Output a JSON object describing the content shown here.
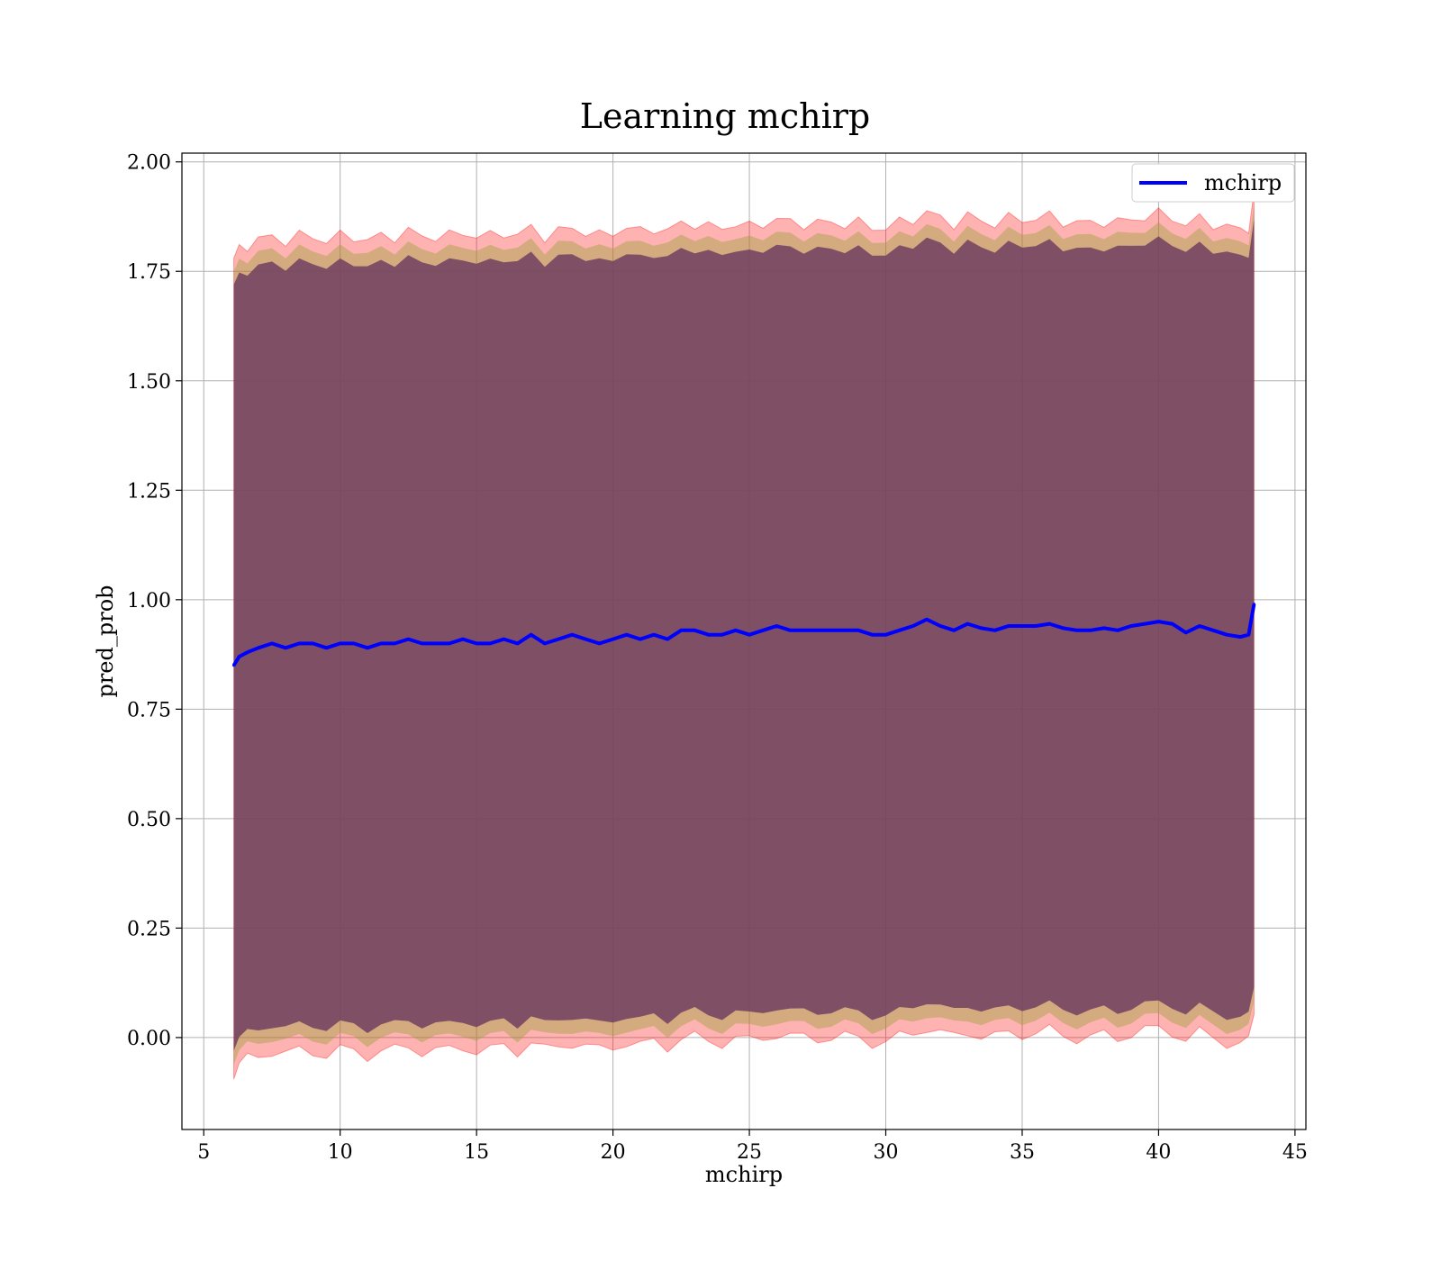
{
  "chart_data": {
    "type": "line",
    "title": "Learning mchirp",
    "xlabel": "mchirp",
    "ylabel": "pred_prob",
    "xlim": [
      4.2,
      45.4
    ],
    "ylim": [
      -0.21,
      2.02
    ],
    "xticks": [
      5,
      10,
      15,
      20,
      25,
      30,
      35,
      40,
      45
    ],
    "xtick_labels": [
      "5",
      "10",
      "15",
      "20",
      "25",
      "30",
      "35",
      "40",
      "45"
    ],
    "yticks": [
      0.0,
      0.25,
      0.5,
      0.75,
      1.0,
      1.25,
      1.5,
      1.75,
      2.0
    ],
    "ytick_labels": [
      "0.00",
      "0.25",
      "0.50",
      "0.75",
      "1.00",
      "1.25",
      "1.50",
      "1.75",
      "2.00"
    ],
    "grid": true,
    "legend_position": "top-right",
    "colors": {
      "line": "#0000ff",
      "band_outer": "#ff0000",
      "band_mid": "#a0a040",
      "band_inner": "#704060",
      "grid": "#b0b0b0"
    },
    "series": [
      {
        "name": "mchirp",
        "x": [
          6.1,
          6.3,
          6.6,
          7.0,
          7.5,
          8.0,
          8.5,
          9.0,
          9.5,
          10.0,
          10.5,
          11.0,
          11.5,
          12.0,
          12.5,
          13.0,
          13.5,
          14.0,
          14.5,
          15.0,
          15.5,
          16.0,
          16.5,
          17.0,
          17.5,
          18.0,
          18.5,
          19.0,
          19.5,
          20.0,
          20.5,
          21.0,
          21.5,
          22.0,
          22.5,
          23.0,
          23.5,
          24.0,
          24.5,
          25.0,
          25.5,
          26.0,
          26.5,
          27.0,
          27.5,
          28.0,
          28.5,
          29.0,
          29.5,
          30.0,
          30.5,
          31.0,
          31.5,
          32.0,
          32.5,
          33.0,
          33.5,
          34.0,
          34.5,
          35.0,
          35.5,
          36.0,
          36.5,
          37.0,
          37.5,
          38.0,
          38.5,
          39.0,
          39.5,
          40.0,
          40.5,
          41.0,
          41.5,
          42.0,
          42.5,
          43.0,
          43.3,
          43.5
        ],
        "y": [
          0.85,
          0.87,
          0.88,
          0.89,
          0.9,
          0.89,
          0.9,
          0.9,
          0.89,
          0.9,
          0.9,
          0.89,
          0.9,
          0.9,
          0.91,
          0.9,
          0.9,
          0.9,
          0.91,
          0.9,
          0.9,
          0.91,
          0.9,
          0.92,
          0.9,
          0.91,
          0.92,
          0.91,
          0.9,
          0.91,
          0.92,
          0.91,
          0.92,
          0.91,
          0.93,
          0.93,
          0.92,
          0.92,
          0.93,
          0.92,
          0.93,
          0.94,
          0.93,
          0.93,
          0.93,
          0.93,
          0.93,
          0.93,
          0.92,
          0.92,
          0.93,
          0.94,
          0.955,
          0.94,
          0.93,
          0.945,
          0.935,
          0.93,
          0.94,
          0.94,
          0.94,
          0.945,
          0.935,
          0.93,
          0.93,
          0.935,
          0.93,
          0.94,
          0.945,
          0.95,
          0.945,
          0.925,
          0.94,
          0.93,
          0.92,
          0.915,
          0.92,
          0.99
        ]
      }
    ],
    "band_half_widths": {
      "outer": 0.93,
      "mid": 0.9,
      "inner": 0.87
    }
  }
}
